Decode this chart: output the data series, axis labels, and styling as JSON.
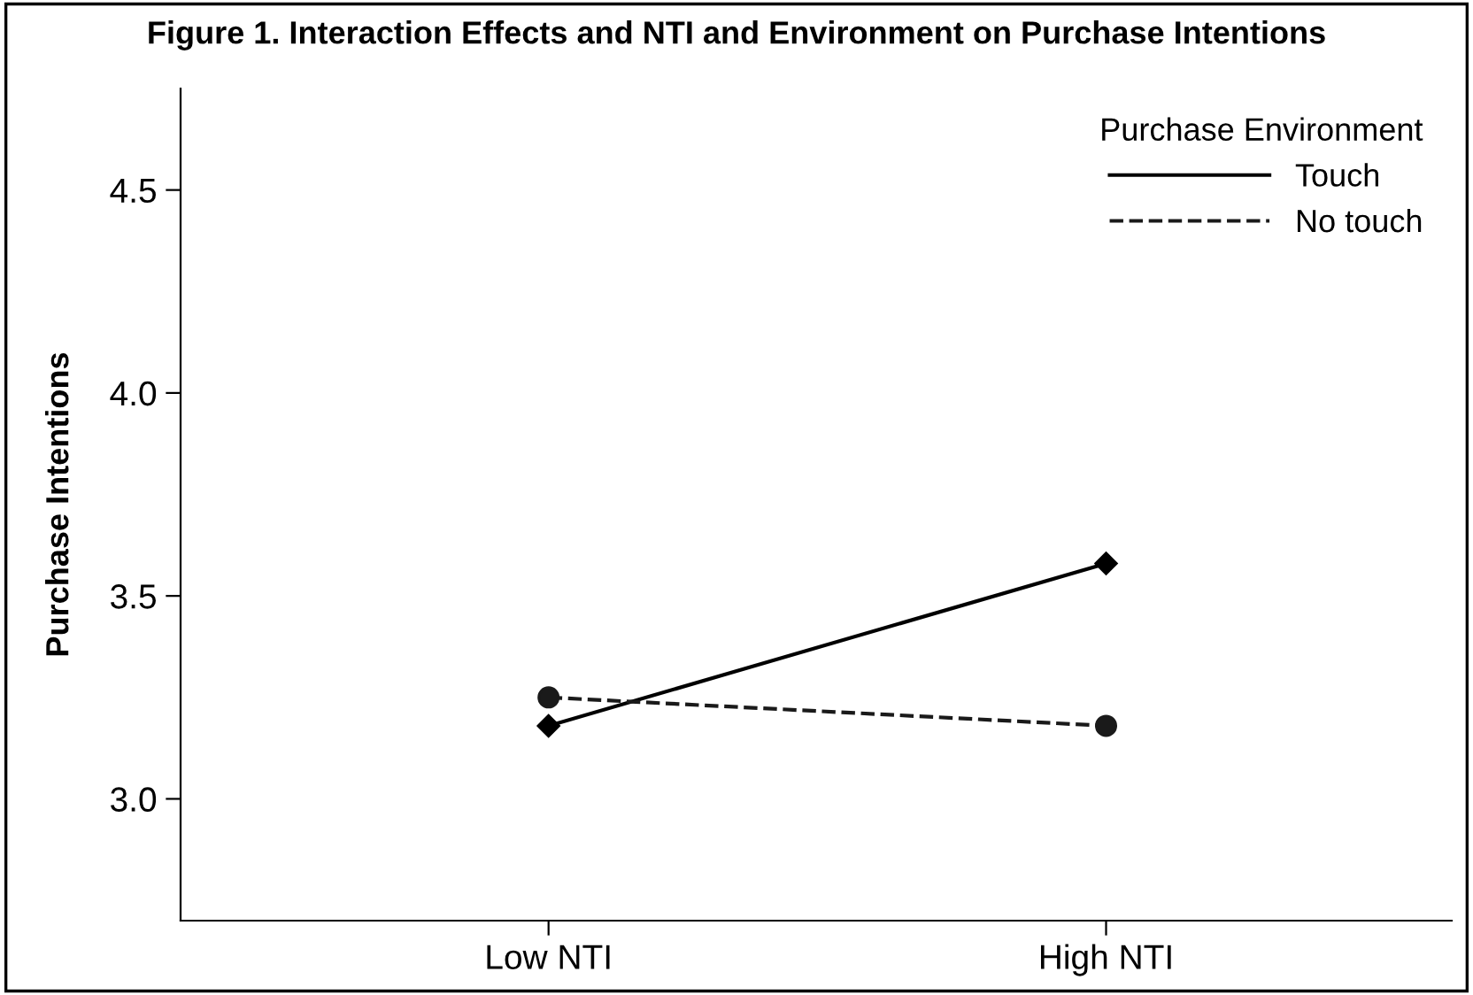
{
  "chart_data": {
    "type": "line",
    "title": "Figure 1. Interaction Effects and NTI and Environment on Purchase Intentions",
    "ylabel": "Purchase Intentions",
    "legend_title": "Purchase Environment",
    "categories": [
      "Low NTI",
      "High NTI"
    ],
    "series": [
      {
        "name": "Touch",
        "color": "#000000",
        "values": [
          3.18,
          3.58
        ],
        "marker": "diamond",
        "line_style": "solid"
      },
      {
        "name": "No touch",
        "color": "#1a1a1a",
        "values": [
          3.25,
          3.18
        ],
        "marker": "circle",
        "line_style": "dashed"
      }
    ],
    "ylim": [
      2.7,
      4.75
    ],
    "yticks": [
      {
        "value": 3,
        "label": "3.0"
      },
      {
        "value": 3.5,
        "label": "3.5"
      },
      {
        "value": 4,
        "label": "4.0"
      },
      {
        "value": 4.5,
        "label": "4.5"
      }
    ],
    "grid": false,
    "legend": "top right"
  }
}
